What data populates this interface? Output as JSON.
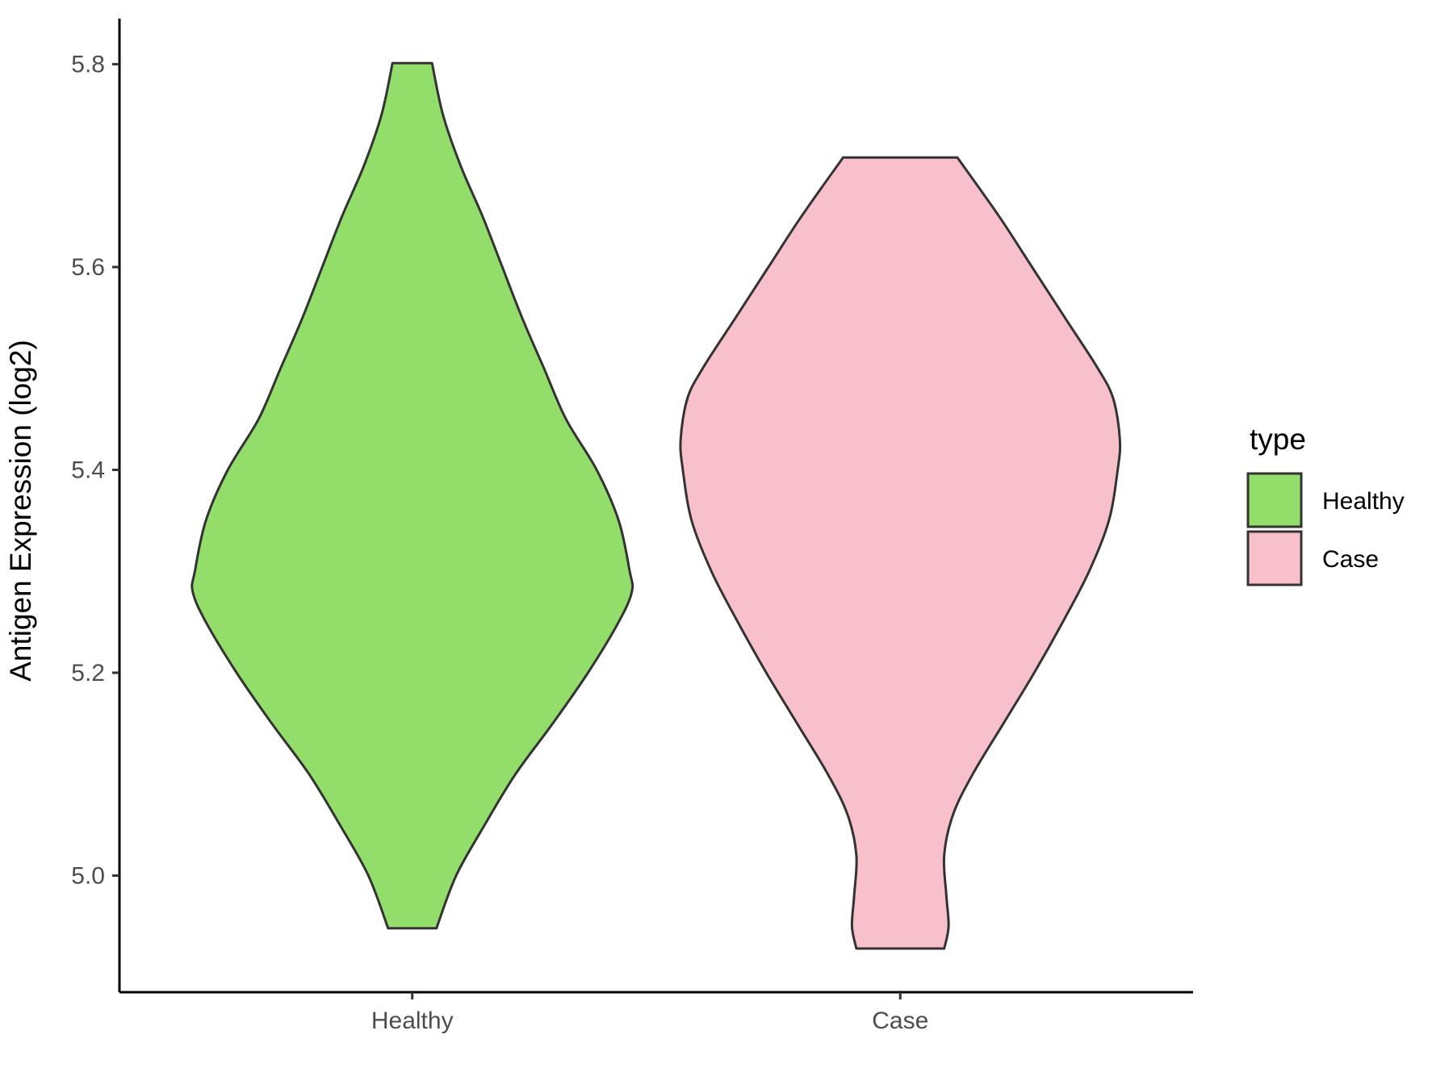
{
  "chart_data": {
    "type": "violin",
    "ylabel": "Antigen Expression (log2)",
    "xlabel": "",
    "ylim": [
      4.885,
      5.845
    ],
    "y_ticks": [
      5.0,
      5.2,
      5.4,
      5.6,
      5.8
    ],
    "y_tick_labels": [
      "5.0",
      "5.2",
      "5.4",
      "5.6",
      "5.8"
    ],
    "categories": [
      "Healthy",
      "Case"
    ],
    "grid": false,
    "legend": {
      "title": "type",
      "position": "right",
      "entries": [
        "Healthy",
        "Case"
      ]
    },
    "series": [
      {
        "name": "Healthy",
        "color": "#93dd6b",
        "min": 4.948,
        "max": 5.801,
        "density_profile": [
          [
            4.948,
            0.11
          ],
          [
            5.0,
            0.2
          ],
          [
            5.05,
            0.33
          ],
          [
            5.1,
            0.47
          ],
          [
            5.15,
            0.64
          ],
          [
            5.2,
            0.8
          ],
          [
            5.25,
            0.94
          ],
          [
            5.28,
            1.0
          ],
          [
            5.3,
            0.99
          ],
          [
            5.35,
            0.94
          ],
          [
            5.4,
            0.84
          ],
          [
            5.45,
            0.7
          ],
          [
            5.5,
            0.6
          ],
          [
            5.55,
            0.5
          ],
          [
            5.6,
            0.41
          ],
          [
            5.65,
            0.32
          ],
          [
            5.7,
            0.22
          ],
          [
            5.75,
            0.14
          ],
          [
            5.801,
            0.09
          ]
        ]
      },
      {
        "name": "Case",
        "color": "#f8c0cb",
        "min": 4.928,
        "max": 5.708,
        "density_profile": [
          [
            4.928,
            0.2
          ],
          [
            4.95,
            0.22
          ],
          [
            4.98,
            0.21
          ],
          [
            5.02,
            0.2
          ],
          [
            5.06,
            0.24
          ],
          [
            5.1,
            0.33
          ],
          [
            5.15,
            0.47
          ],
          [
            5.2,
            0.61
          ],
          [
            5.25,
            0.74
          ],
          [
            5.3,
            0.86
          ],
          [
            5.35,
            0.95
          ],
          [
            5.4,
            0.99
          ],
          [
            5.43,
            1.0
          ],
          [
            5.47,
            0.97
          ],
          [
            5.5,
            0.9
          ],
          [
            5.55,
            0.75
          ],
          [
            5.6,
            0.6
          ],
          [
            5.65,
            0.45
          ],
          [
            5.708,
            0.26
          ]
        ]
      }
    ]
  }
}
